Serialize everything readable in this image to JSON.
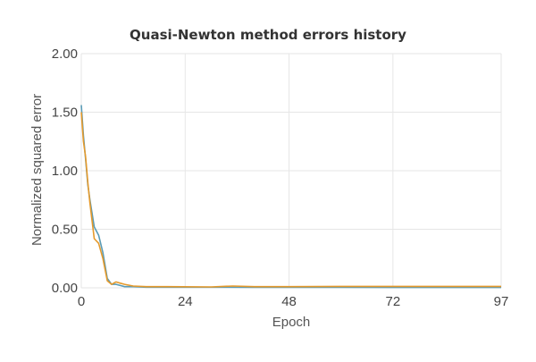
{
  "chart_data": {
    "type": "line",
    "title": "Quasi-Newton method errors history",
    "xlabel": "Epoch",
    "ylabel": "Normalized squared error",
    "xlim": [
      0,
      97
    ],
    "ylim": [
      0,
      2
    ],
    "x_ticks": [
      "0",
      "24",
      "48",
      "72",
      "97"
    ],
    "y_ticks": [
      "0.00",
      "0.50",
      "1.00",
      "1.50",
      "2.00"
    ],
    "grid": true,
    "series": [
      {
        "color": "#5a9bb5",
        "x": [
          0,
          0.5,
          1,
          1.5,
          2,
          3,
          4,
          5,
          6,
          7,
          8,
          9,
          10,
          12,
          15,
          20,
          30,
          40,
          48,
          60,
          72,
          85,
          97
        ],
        "y": [
          1.56,
          1.3,
          1.1,
          0.88,
          0.75,
          0.52,
          0.45,
          0.3,
          0.08,
          0.03,
          0.03,
          0.02,
          0.01,
          0.01,
          0.005,
          0.005,
          0.005,
          0.004,
          0.004,
          0.004,
          0.003,
          0.003,
          0.003
        ]
      },
      {
        "color": "#e59a2c",
        "x": [
          0,
          0.5,
          1,
          1.5,
          2,
          3,
          4,
          5,
          6,
          7,
          8,
          9,
          10,
          12,
          15,
          20,
          30,
          35,
          40,
          48,
          60,
          72,
          85,
          97
        ],
        "y": [
          1.5,
          1.25,
          1.12,
          0.9,
          0.72,
          0.42,
          0.38,
          0.25,
          0.06,
          0.03,
          0.05,
          0.04,
          0.03,
          0.015,
          0.01,
          0.01,
          0.008,
          0.015,
          0.01,
          0.01,
          0.012,
          0.012,
          0.012,
          0.012
        ]
      }
    ]
  }
}
